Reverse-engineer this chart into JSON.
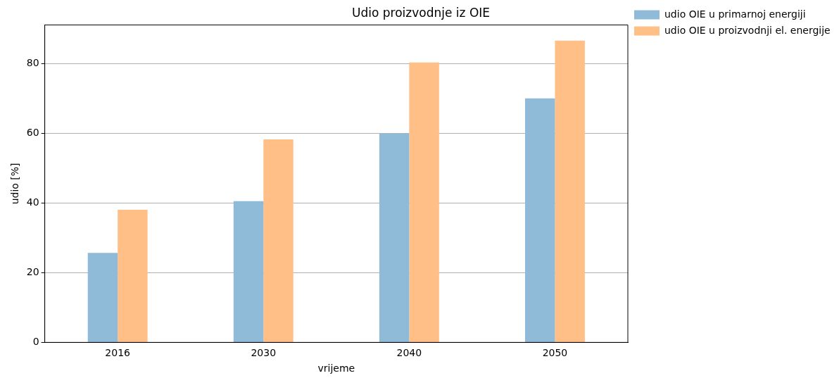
{
  "chart_data": {
    "type": "bar",
    "title": "Udio proizvodnje iz OIE",
    "xlabel": "vrijeme",
    "ylabel": "udio [%]",
    "categories": [
      "2016",
      "2030",
      "2040",
      "2050"
    ],
    "series": [
      {
        "name": "udio OIE u primarnoj energiji",
        "color": "#8fbbd9",
        "values": [
          25.7,
          40.6,
          60.0,
          70.1
        ]
      },
      {
        "name": "udio OIE u proizvodnji el. energije",
        "color": "#ffbf86",
        "values": [
          38.1,
          58.3,
          80.4,
          86.7
        ]
      }
    ],
    "ylim": [
      0,
      91.2
    ],
    "yticks": [
      0,
      20,
      40,
      60,
      80
    ],
    "grid": "y",
    "legend": "top right"
  }
}
